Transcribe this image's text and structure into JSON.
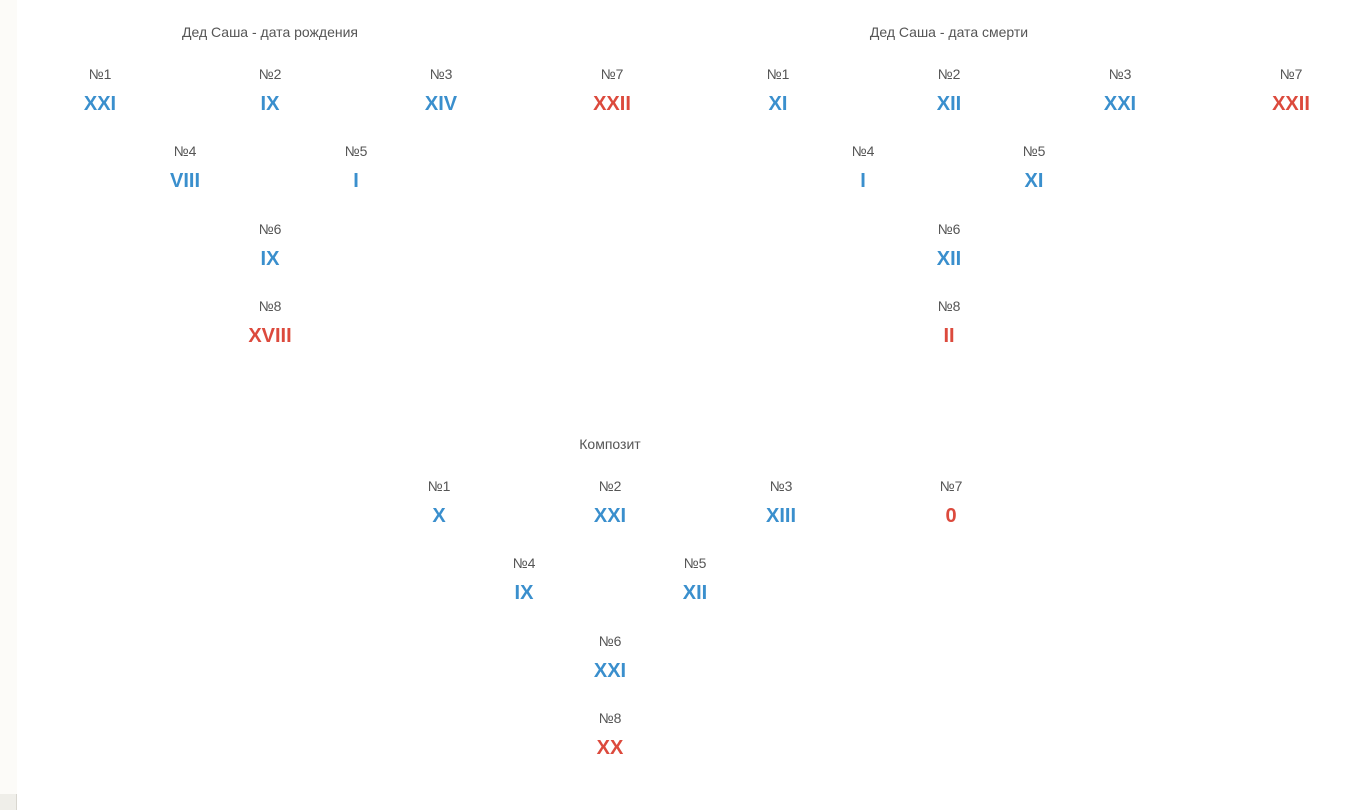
{
  "sections": {
    "birth": {
      "title": "Дед Саша - дата рождения",
      "cells": {
        "n1": {
          "label": "№1",
          "value": "XXI",
          "color": "#3a8fcd"
        },
        "n2": {
          "label": "№2",
          "value": "IX",
          "color": "#3a8fcd"
        },
        "n3": {
          "label": "№3",
          "value": "XIV",
          "color": "#3a8fcd"
        },
        "n7": {
          "label": "№7",
          "value": "XXII",
          "color": "#dc4a3d"
        },
        "n4": {
          "label": "№4",
          "value": "VIII",
          "color": "#3a8fcd"
        },
        "n5": {
          "label": "№5",
          "value": "I",
          "color": "#3a8fcd"
        },
        "n6": {
          "label": "№6",
          "value": "IX",
          "color": "#3a8fcd"
        },
        "n8": {
          "label": "№8",
          "value": "XVIII",
          "color": "#dc4a3d"
        }
      }
    },
    "death": {
      "title": "Дед Саша - дата смерти",
      "cells": {
        "n1": {
          "label": "№1",
          "value": "XI",
          "color": "#3a8fcd"
        },
        "n2": {
          "label": "№2",
          "value": "XII",
          "color": "#3a8fcd"
        },
        "n3": {
          "label": "№3",
          "value": "XXI",
          "color": "#3a8fcd"
        },
        "n7": {
          "label": "№7",
          "value": "XXII",
          "color": "#dc4a3d"
        },
        "n4": {
          "label": "№4",
          "value": "I",
          "color": "#3a8fcd"
        },
        "n5": {
          "label": "№5",
          "value": "XI",
          "color": "#3a8fcd"
        },
        "n6": {
          "label": "№6",
          "value": "XII",
          "color": "#3a8fcd"
        },
        "n8": {
          "label": "№8",
          "value": "II",
          "color": "#dc4a3d"
        }
      }
    },
    "composite": {
      "title": "Композит",
      "cells": {
        "n1": {
          "label": "№1",
          "value": "X",
          "color": "#3a8fcd"
        },
        "n2": {
          "label": "№2",
          "value": "XXI",
          "color": "#3a8fcd"
        },
        "n3": {
          "label": "№3",
          "value": "XIII",
          "color": "#3a8fcd"
        },
        "n7": {
          "label": "№7",
          "value": "0",
          "color": "#dc4a3d"
        },
        "n4": {
          "label": "№4",
          "value": "IX",
          "color": "#3a8fcd"
        },
        "n5": {
          "label": "№5",
          "value": "XII",
          "color": "#3a8fcd"
        },
        "n6": {
          "label": "№6",
          "value": "XXI",
          "color": "#3a8fcd"
        },
        "n8": {
          "label": "№8",
          "value": "XX",
          "color": "#dc4a3d"
        }
      }
    }
  }
}
